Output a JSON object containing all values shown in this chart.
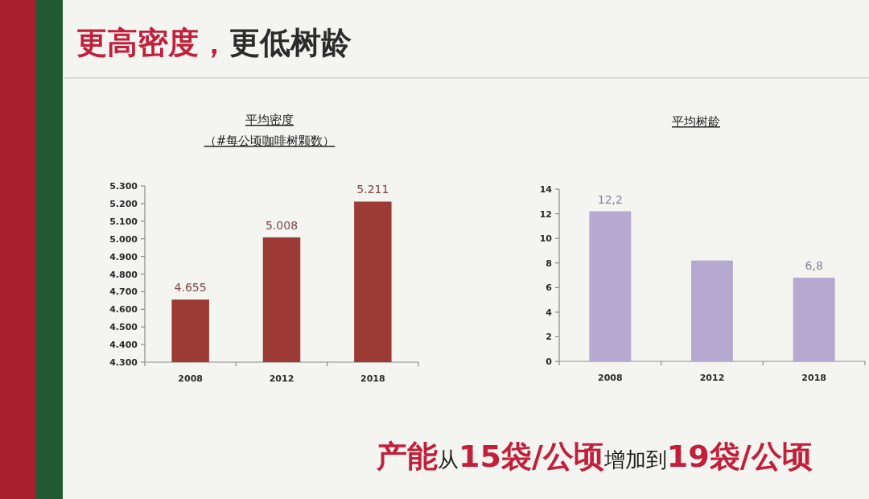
{
  "chart_data": [
    {
      "type": "other",
      "title": "**更高密度，**更低树龄"
    },
    {
      "type": "bar",
      "title": "平均密度",
      "subtitle": "（#每公顷咖啡树颗数）",
      "categories": [
        "2008",
        "2012",
        "2018"
      ],
      "values": [
        4655,
        5008,
        5211
      ],
      "color": "#9c3a35",
      "ylim": [
        4300,
        5300
      ],
      "yticks": [
        {
          "value": 4300,
          "label": "4.300"
        },
        {
          "value": 4400,
          "label": "4.400"
        },
        {
          "value": 4500,
          "label": "4.500"
        },
        {
          "value": 4600,
          "label": "4.600"
        },
        {
          "value": 4700,
          "label": "4.700"
        },
        {
          "value": 4800,
          "label": "4.800"
        },
        {
          "value": 4900,
          "label": "4.900"
        },
        {
          "value": 5000,
          "label": "5.000"
        },
        {
          "value": 5100,
          "label": "5.100"
        },
        {
          "value": 5200,
          "label": "5.200"
        },
        {
          "value": 5300,
          "label": "5.300"
        }
      ],
      "value_labels": [
        "4.655",
        "5.008",
        "5.211"
      ]
    },
    {
      "type": "bar",
      "title": "平均树龄",
      "categories": [
        "2008",
        "2012",
        "2018"
      ],
      "values": [
        12.2,
        8.2,
        6.8
      ],
      "color": "#b5a9cf",
      "ylim": [
        0,
        14
      ],
      "yticks": [
        0,
        2,
        4,
        6,
        8,
        10,
        12,
        14
      ],
      "value_labels": [
        "12,2",
        null,
        "6,8"
      ]
    },
    {
      "type": "other",
      "annotations": [
        "**产能**从**15袋/公顷**增加到**19袋/公顷**"
      ]
    }
  ]
}
